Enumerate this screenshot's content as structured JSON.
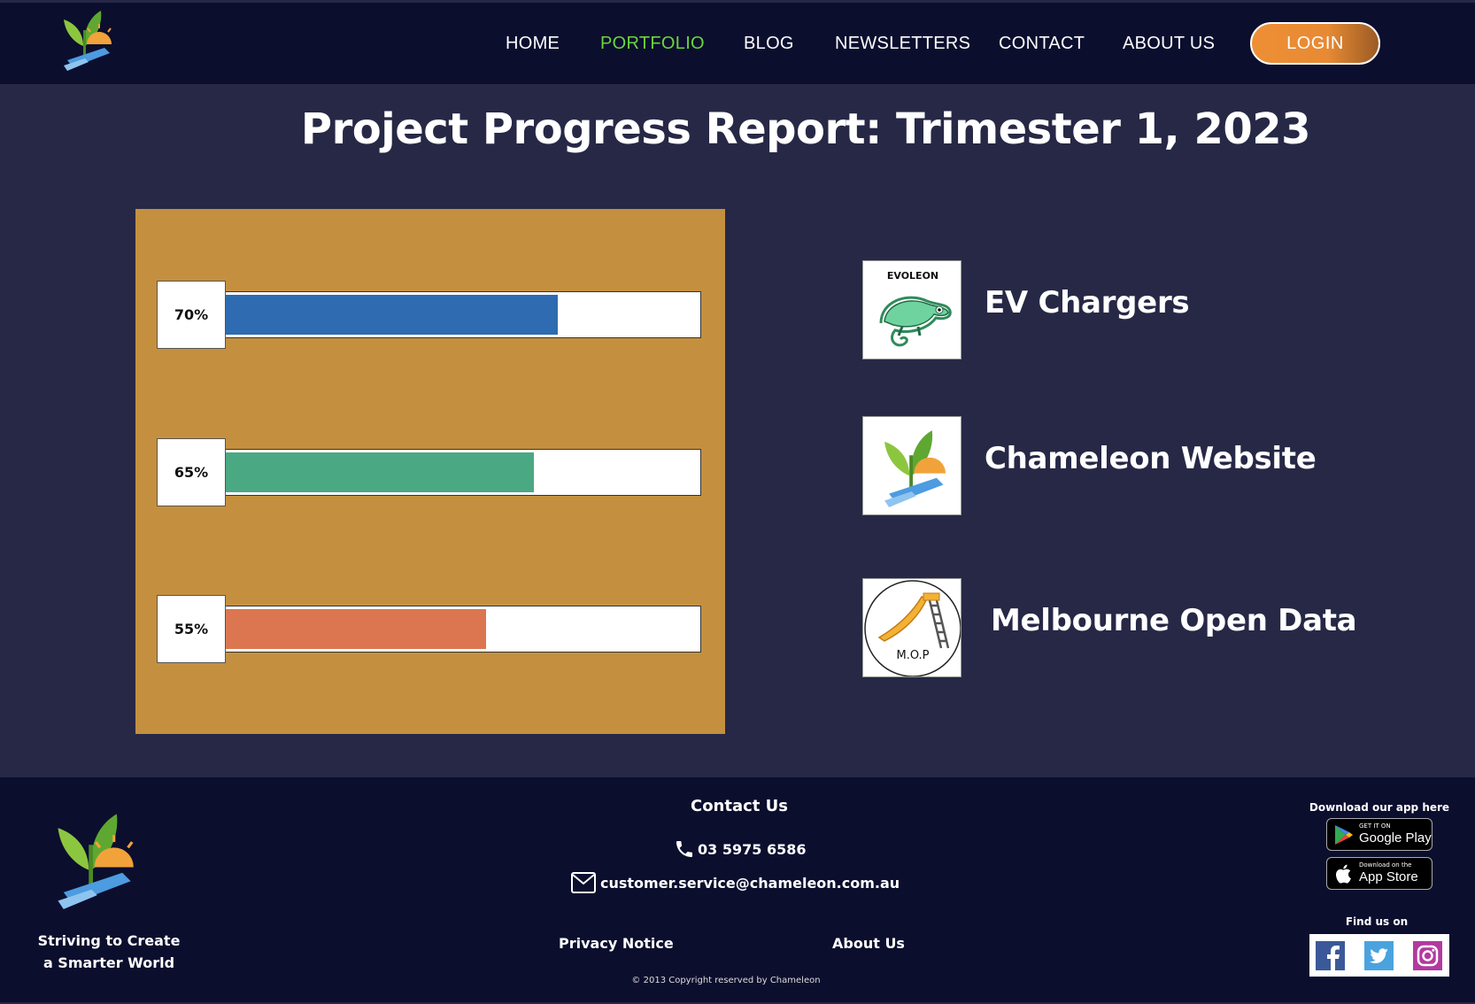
{
  "nav": {
    "items": [
      {
        "label": "HOME",
        "active": false
      },
      {
        "label": "PORTFOLIO",
        "active": true
      },
      {
        "label": "BLOG",
        "active": false
      },
      {
        "label": "NEWSLETTERS",
        "active": false
      },
      {
        "label": "CONTACT",
        "active": false
      },
      {
        "label": "ABOUT US",
        "active": false
      }
    ],
    "login_label": "LOGIN",
    "active_color": "#6dd53a"
  },
  "page": {
    "title": "Project Progress Report: Trimester 1, 2023"
  },
  "progress": {
    "bars": [
      {
        "label": "70%",
        "value": 70,
        "color": "#2e6bb0"
      },
      {
        "label": "65%",
        "value": 65,
        "color": "#4aa882"
      },
      {
        "label": "55%",
        "value": 55,
        "color": "#dc7651"
      }
    ],
    "panel_color": "#c4903f"
  },
  "projects": [
    {
      "name": "EV Chargers",
      "thumb_text": "EVOLEON",
      "icon": "chameleon-icon"
    },
    {
      "name": "Chameleon Website",
      "icon": "chameleon-logo-icon"
    },
    {
      "name": "Melbourne Open Data",
      "thumb_text": "M.O.P",
      "icon": "slide-icon"
    }
  ],
  "footer": {
    "tagline_line1": "Striving to Create",
    "tagline_line2": "a Smarter World",
    "contact_title": "Contact Us",
    "phone": "03 5975 6586",
    "email": "customer.service@chameleon.com.au",
    "privacy_label": "Privacy Notice",
    "about_label": "About Us",
    "copyright": "© 2013 Copyright reserved by Chameleon",
    "download_title": "Download our app here",
    "google_play_small": "GET IT ON",
    "google_play_big": "Google Play",
    "app_store_small": "Download on the",
    "app_store_big": "App Store",
    "find_title": "Find us on",
    "social": [
      "facebook-icon",
      "twitter-icon",
      "instagram-icon"
    ]
  }
}
